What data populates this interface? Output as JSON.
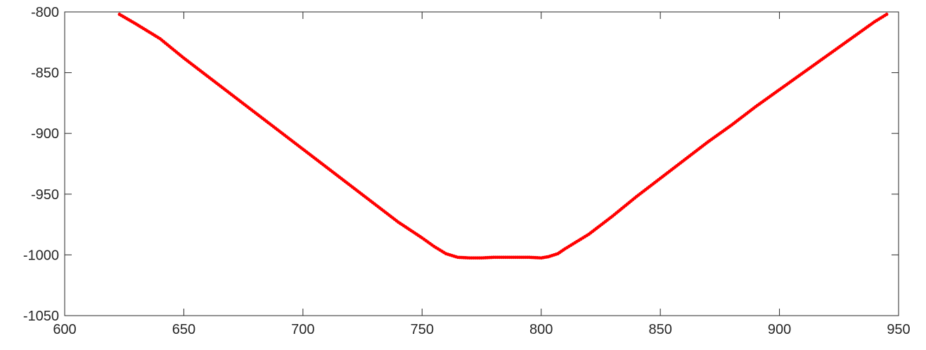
{
  "chart_data": {
    "type": "scatter",
    "title": "",
    "xlabel": "",
    "ylabel": "",
    "xlim": [
      600,
      950
    ],
    "ylim": [
      -1050,
      -800
    ],
    "xticks": [
      600,
      650,
      700,
      750,
      800,
      850,
      900,
      950
    ],
    "yticks": [
      -800,
      -850,
      -900,
      -950,
      -1000,
      -1050
    ],
    "xtick_labels": [
      "600",
      "650",
      "700",
      "750",
      "800",
      "850",
      "900",
      "950"
    ],
    "ytick_labels": [
      "-800",
      "-850",
      "-900",
      "-950",
      "-1000",
      "-1050"
    ],
    "grid": false,
    "box": true,
    "marker_color": "#ff0000",
    "series": [
      {
        "values_xy": [
          [
            623,
            -802
          ],
          [
            630,
            -810
          ],
          [
            640,
            -822
          ],
          [
            650,
            -838
          ],
          [
            660,
            -853
          ],
          [
            670,
            -868
          ],
          [
            680,
            -883
          ],
          [
            690,
            -898
          ],
          [
            700,
            -913
          ],
          [
            710,
            -928
          ],
          [
            720,
            -943
          ],
          [
            730,
            -958
          ],
          [
            740,
            -973
          ],
          [
            750,
            -986
          ],
          [
            755,
            -993
          ],
          [
            760,
            -999
          ],
          [
            765,
            -1002
          ],
          [
            770,
            -1002.5
          ],
          [
            775,
            -1002.5
          ],
          [
            780,
            -1002
          ],
          [
            785,
            -1002
          ],
          [
            790,
            -1002
          ],
          [
            795,
            -1002
          ],
          [
            800,
            -1002.5
          ],
          [
            803,
            -1001.5
          ],
          [
            807,
            -999
          ],
          [
            810,
            -995
          ],
          [
            815,
            -989
          ],
          [
            820,
            -983
          ],
          [
            830,
            -968
          ],
          [
            840,
            -952
          ],
          [
            850,
            -937
          ],
          [
            860,
            -922
          ],
          [
            870,
            -907
          ],
          [
            880,
            -893
          ],
          [
            890,
            -878
          ],
          [
            900,
            -864
          ],
          [
            910,
            -850
          ],
          [
            920,
            -836
          ],
          [
            930,
            -822
          ],
          [
            940,
            -808
          ],
          [
            945,
            -802
          ]
        ]
      }
    ]
  }
}
